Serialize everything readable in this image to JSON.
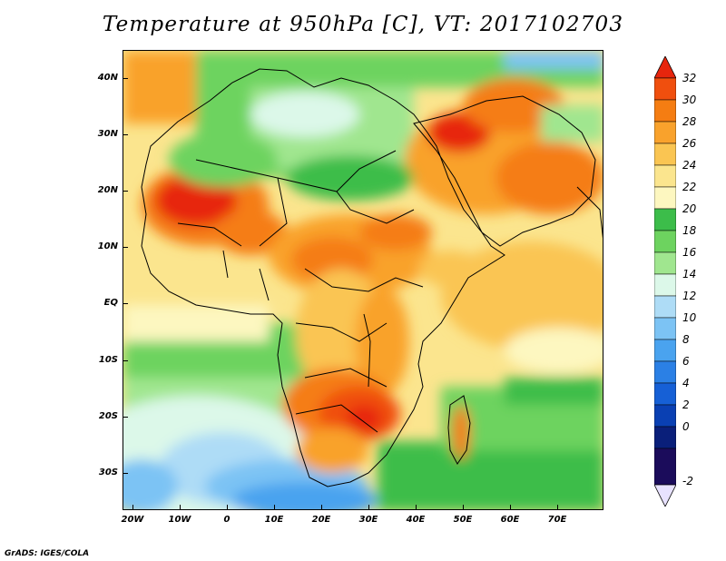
{
  "title": "Temperature at 950hPa [C], VT: 2017102703",
  "footer": "GrADS: IGES/COLA",
  "map": {
    "lat_labels": [
      "40N",
      "30N",
      "20N",
      "10N",
      "EQ",
      "10S",
      "20S",
      "30S"
    ],
    "lat_values": [
      40,
      30,
      20,
      10,
      0,
      -10,
      -20,
      -30
    ],
    "lon_labels": [
      "20W",
      "10W",
      "0",
      "10E",
      "20E",
      "30E",
      "40E",
      "50E",
      "60E",
      "70E"
    ],
    "lon_values": [
      -20,
      -10,
      0,
      10,
      20,
      30,
      40,
      50,
      60,
      70
    ],
    "lat_range": [
      -37,
      44
    ],
    "lon_range": [
      -22,
      80
    ]
  },
  "colorbar": {
    "labels": [
      "32",
      "30",
      "28",
      "26",
      "24",
      "22",
      "20",
      "18",
      "16",
      "14",
      "12",
      "10",
      "8",
      "6",
      "4",
      "2",
      "0",
      "-2"
    ],
    "levels": [
      32,
      30,
      28,
      26,
      24,
      22,
      20,
      18,
      16,
      14,
      12,
      10,
      8,
      6,
      4,
      2,
      0,
      -2
    ],
    "colors": [
      "#e7250d",
      "#f04f0e",
      "#f57d12",
      "#f9a22c",
      "#fac552",
      "#fbe58e",
      "#fdf7c0",
      "#3cbd4a",
      "#6dd35f",
      "#a0e68f",
      "#dcf8e9",
      "#aedcf6",
      "#7cc3f4",
      "#4aa3ef",
      "#2b80e5",
      "#1660d6",
      "#0a40b3",
      "#0a1f7a",
      "#1b0c5b",
      "#e8e2ff"
    ],
    "units": "C"
  }
}
